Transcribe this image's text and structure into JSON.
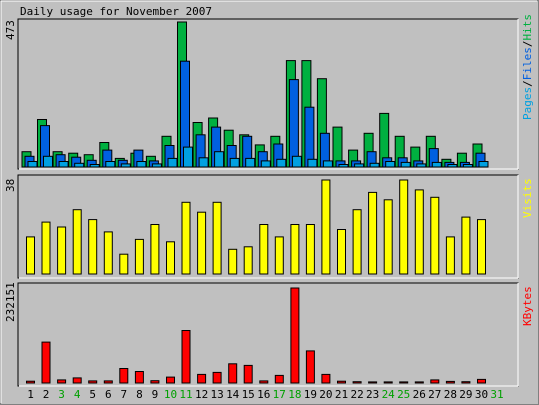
{
  "title": "Daily usage for November 2007",
  "panels": {
    "hits": {
      "max_label": "473",
      "legend": [
        {
          "text": "Pages",
          "color": "#00a0e0"
        },
        {
          "text": "/",
          "color": "#000000"
        },
        {
          "text": "Files",
          "color": "#0060e0"
        },
        {
          "text": "/",
          "color": "#000000"
        },
        {
          "text": "Hits",
          "color": "#00b040"
        }
      ]
    },
    "visits": {
      "max_label": "38",
      "legend_text": "Visits",
      "color": "#ffff00"
    },
    "kbytes": {
      "max_label": "232151",
      "legend_text": "KBytes",
      "color": "#ff0000"
    }
  },
  "colors": {
    "background": "#c0c0c0",
    "weekend_day": "#00a000",
    "weekday_day": "#000000"
  },
  "chart_data": [
    {
      "type": "bar",
      "title": "Daily usage for November 2007",
      "categories": [
        "1",
        "2",
        "3",
        "4",
        "5",
        "6",
        "7",
        "8",
        "9",
        "10",
        "11",
        "12",
        "13",
        "14",
        "15",
        "16",
        "17",
        "18",
        "19",
        "20",
        "21",
        "22",
        "23",
        "24",
        "25",
        "26",
        "27",
        "28",
        "29",
        "30",
        "31"
      ],
      "weekend_days": [
        "3",
        "4",
        "10",
        "11",
        "17",
        "18",
        "24",
        "25",
        "31"
      ],
      "ylim": [
        0,
        473
      ],
      "series": [
        {
          "name": "Hits",
          "color": "#00b040",
          "values": [
            50,
            155,
            50,
            45,
            40,
            80,
            28,
            45,
            35,
            100,
            473,
            145,
            160,
            120,
            105,
            72,
            100,
            347,
            347,
            288,
            130,
            55,
            110,
            175,
            100,
            65,
            100,
            25,
            45,
            75,
            0
          ]
        },
        {
          "name": "Files",
          "color": "#0060e0",
          "values": [
            35,
            135,
            40,
            32,
            22,
            55,
            22,
            55,
            20,
            70,
            345,
            105,
            130,
            70,
            100,
            50,
            75,
            285,
            195,
            110,
            20,
            20,
            50,
            30,
            30,
            20,
            60,
            15,
            15,
            45,
            0
          ]
        },
        {
          "name": "Pages",
          "color": "#00a0e0",
          "values": [
            18,
            35,
            18,
            12,
            8,
            18,
            10,
            18,
            10,
            28,
            65,
            30,
            50,
            28,
            28,
            20,
            25,
            35,
            25,
            20,
            8,
            10,
            12,
            18,
            15,
            10,
            15,
            8,
            8,
            18,
            0
          ]
        }
      ]
    },
    {
      "type": "bar",
      "ylim": [
        0,
        38
      ],
      "categories": [
        "1",
        "2",
        "3",
        "4",
        "5",
        "6",
        "7",
        "8",
        "9",
        "10",
        "11",
        "12",
        "13",
        "14",
        "15",
        "16",
        "17",
        "18",
        "19",
        "20",
        "21",
        "22",
        "23",
        "24",
        "25",
        "26",
        "27",
        "28",
        "29",
        "30",
        "31"
      ],
      "series": [
        {
          "name": "Visits",
          "color": "#ffff00",
          "values": [
            15,
            21,
            19,
            26,
            22,
            17,
            8,
            14,
            20,
            13,
            29,
            25,
            29,
            10,
            11,
            20,
            15,
            20,
            20,
            38,
            18,
            26,
            33,
            30,
            38,
            34,
            31,
            15,
            23,
            22,
            0
          ]
        }
      ]
    },
    {
      "type": "bar",
      "ylim": [
        0,
        232151
      ],
      "categories": [
        "1",
        "2",
        "3",
        "4",
        "5",
        "6",
        "7",
        "8",
        "9",
        "10",
        "11",
        "12",
        "13",
        "14",
        "15",
        "16",
        "17",
        "18",
        "19",
        "20",
        "21",
        "22",
        "23",
        "24",
        "25",
        "26",
        "27",
        "28",
        "29",
        "30",
        "31"
      ],
      "series": [
        {
          "name": "KBytes",
          "color": "#ff0000",
          "values": [
            4500,
            100000,
            7600,
            12500,
            5200,
            5200,
            35500,
            28100,
            5600,
            14500,
            128400,
            21000,
            26000,
            46800,
            42900,
            5200,
            18500,
            232151,
            78500,
            21000,
            4500,
            3200,
            2600,
            2600,
            2600,
            2600,
            7600,
            3900,
            3200,
            8900,
            0
          ]
        }
      ]
    }
  ]
}
